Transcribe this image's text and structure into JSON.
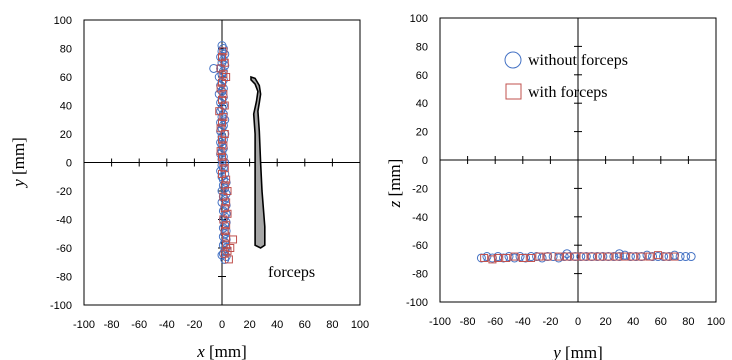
{
  "chart_data": [
    {
      "type": "scatter",
      "xlabel_var": "x",
      "xlabel_unit": " [mm]",
      "ylabel_var": "y",
      "ylabel_unit": " [mm]",
      "xlim": [
        -100,
        100
      ],
      "ylim": [
        -100,
        100
      ],
      "xticks": [
        -100,
        -80,
        -60,
        -40,
        -20,
        0,
        20,
        40,
        60,
        80,
        100
      ],
      "yticks": [
        -100,
        -80,
        -60,
        -40,
        -20,
        0,
        20,
        40,
        60,
        80,
        100
      ],
      "annotation": "forceps",
      "forceps_outline": [
        [
          21,
          60
        ],
        [
          24,
          59
        ],
        [
          27,
          54
        ],
        [
          28,
          48
        ],
        [
          27,
          42
        ],
        [
          26,
          36
        ],
        [
          27,
          22
        ],
        [
          28,
          0
        ],
        [
          29,
          -20
        ],
        [
          31,
          -45
        ],
        [
          31,
          -58
        ],
        [
          28,
          -60
        ],
        [
          24,
          -58
        ],
        [
          24,
          -40
        ],
        [
          24,
          -20
        ],
        [
          24,
          0
        ],
        [
          24,
          20
        ],
        [
          23,
          34
        ],
        [
          25,
          43
        ],
        [
          26,
          50
        ],
        [
          24,
          55
        ],
        [
          21,
          58
        ]
      ],
      "series": [
        {
          "name": "without forceps",
          "marker": "circle",
          "color": "#4472c4",
          "points": [
            [
              0,
              82
            ],
            [
              1,
              80
            ],
            [
              0,
              78
            ],
            [
              2,
              76
            ],
            [
              -1,
              74
            ],
            [
              1,
              72
            ],
            [
              0,
              70
            ],
            [
              2,
              68
            ],
            [
              -1,
              66
            ],
            [
              1,
              64
            ],
            [
              0,
              62
            ],
            [
              -2,
              60
            ],
            [
              1,
              58
            ],
            [
              0,
              56
            ],
            [
              -1,
              54
            ],
            [
              1,
              52
            ],
            [
              0,
              50
            ],
            [
              -2,
              48
            ],
            [
              1,
              46
            ],
            [
              0,
              44
            ],
            [
              -1,
              42
            ],
            [
              1,
              40
            ],
            [
              0,
              38
            ],
            [
              -1,
              36
            ],
            [
              1,
              34
            ],
            [
              0,
              32
            ],
            [
              2,
              30
            ],
            [
              -1,
              28
            ],
            [
              1,
              26
            ],
            [
              0,
              24
            ],
            [
              -1,
              22
            ],
            [
              2,
              20
            ],
            [
              0,
              18
            ],
            [
              1,
              16
            ],
            [
              -1,
              14
            ],
            [
              0,
              12
            ],
            [
              1,
              10
            ],
            [
              0,
              8
            ],
            [
              -1,
              6
            ],
            [
              1,
              4
            ],
            [
              0,
              2
            ],
            [
              2,
              0
            ],
            [
              0,
              -2
            ],
            [
              1,
              -4
            ],
            [
              -1,
              -6
            ],
            [
              2,
              -8
            ],
            [
              0,
              -10
            ],
            [
              1,
              -12
            ],
            [
              3,
              -14
            ],
            [
              1,
              -16
            ],
            [
              2,
              -18
            ],
            [
              0,
              -20
            ],
            [
              3,
              -22
            ],
            [
              1,
              -24
            ],
            [
              2,
              -26
            ],
            [
              0,
              -28
            ],
            [
              3,
              -30
            ],
            [
              2,
              -32
            ],
            [
              1,
              -34
            ],
            [
              3,
              -36
            ],
            [
              2,
              -38
            ],
            [
              1,
              -40
            ],
            [
              3,
              -42
            ],
            [
              2,
              -44
            ],
            [
              1,
              -46
            ],
            [
              3,
              -48
            ],
            [
              2,
              -50
            ],
            [
              1,
              -52
            ],
            [
              3,
              -54
            ],
            [
              2,
              -56
            ],
            [
              1,
              -58
            ],
            [
              3,
              -60
            ],
            [
              2,
              -62
            ],
            [
              1,
              -64
            ],
            [
              3,
              -66
            ],
            [
              2,
              -68
            ],
            [
              -6,
              66
            ],
            [
              0,
              -65
            ]
          ]
        },
        {
          "name": "with forceps",
          "marker": "square",
          "color": "#c0504d",
          "points": [
            [
              1,
              78
            ],
            [
              0,
              74
            ],
            [
              2,
              70
            ],
            [
              -1,
              66
            ],
            [
              1,
              62
            ],
            [
              3,
              60
            ],
            [
              0,
              56
            ],
            [
              -1,
              52
            ],
            [
              1,
              48
            ],
            [
              0,
              44
            ],
            [
              2,
              40
            ],
            [
              -2,
              36
            ],
            [
              1,
              32
            ],
            [
              0,
              28
            ],
            [
              -1,
              24
            ],
            [
              2,
              20
            ],
            [
              0,
              16
            ],
            [
              1,
              12
            ],
            [
              -1,
              8
            ],
            [
              0,
              4
            ],
            [
              1,
              0
            ],
            [
              2,
              -4
            ],
            [
              0,
              -8
            ],
            [
              3,
              -12
            ],
            [
              2,
              -16
            ],
            [
              4,
              -20
            ],
            [
              1,
              -24
            ],
            [
              3,
              -28
            ],
            [
              2,
              -32
            ],
            [
              4,
              -36
            ],
            [
              1,
              -40
            ],
            [
              3,
              -44
            ],
            [
              2,
              -48
            ],
            [
              8,
              -54
            ],
            [
              3,
              -58
            ],
            [
              4,
              -62
            ],
            [
              2,
              -64
            ],
            [
              5,
              -68
            ],
            [
              3,
              -52
            ],
            [
              6,
              -60
            ]
          ]
        }
      ]
    },
    {
      "type": "scatter",
      "xlabel_var": "y",
      "xlabel_unit": " [mm]",
      "ylabel_var": "z",
      "ylabel_unit": " [mm]",
      "xlim": [
        -100,
        100
      ],
      "ylim": [
        -100,
        100
      ],
      "xticks": [
        -100,
        -80,
        -60,
        -40,
        -20,
        0,
        20,
        40,
        60,
        80,
        100
      ],
      "yticks": [
        -100,
        -80,
        -60,
        -40,
        -20,
        0,
        20,
        40,
        60,
        80,
        100
      ],
      "legend": [
        "without forceps",
        "with forceps"
      ],
      "legend_position": "top-center",
      "series": [
        {
          "name": "without forceps",
          "marker": "circle",
          "color": "#4472c4",
          "points": [
            [
              -70,
              -69
            ],
            [
              -66,
              -68
            ],
            [
              -62,
              -69
            ],
            [
              -58,
              -68
            ],
            [
              -54,
              -69
            ],
            [
              -50,
              -68
            ],
            [
              -46,
              -69
            ],
            [
              -42,
              -68
            ],
            [
              -38,
              -69
            ],
            [
              -34,
              -68
            ],
            [
              -30,
              -68
            ],
            [
              -26,
              -69
            ],
            [
              -22,
              -68
            ],
            [
              -18,
              -68
            ],
            [
              -14,
              -69
            ],
            [
              -10,
              -68
            ],
            [
              -6,
              -68
            ],
            [
              -2,
              -68
            ],
            [
              2,
              -68
            ],
            [
              6,
              -68
            ],
            [
              10,
              -68
            ],
            [
              14,
              -68
            ],
            [
              18,
              -68
            ],
            [
              22,
              -68
            ],
            [
              26,
              -68
            ],
            [
              30,
              -68
            ],
            [
              34,
              -67
            ],
            [
              38,
              -68
            ],
            [
              42,
              -68
            ],
            [
              46,
              -68
            ],
            [
              50,
              -67
            ],
            [
              54,
              -68
            ],
            [
              58,
              -68
            ],
            [
              62,
              -68
            ],
            [
              66,
              -68
            ],
            [
              70,
              -67
            ],
            [
              74,
              -68
            ],
            [
              78,
              -68
            ],
            [
              82,
              -68
            ],
            [
              -8,
              -66
            ],
            [
              30,
              -66
            ]
          ]
        },
        {
          "name": "with forceps",
          "marker": "square",
          "color": "#c0504d",
          "points": [
            [
              -68,
              -69
            ],
            [
              -62,
              -70
            ],
            [
              -58,
              -69
            ],
            [
              -52,
              -69
            ],
            [
              -46,
              -68
            ],
            [
              -40,
              -69
            ],
            [
              -34,
              -69
            ],
            [
              -28,
              -68
            ],
            [
              -22,
              -68
            ],
            [
              -14,
              -68
            ],
            [
              -8,
              -68
            ],
            [
              -2,
              -68
            ],
            [
              4,
              -68
            ],
            [
              10,
              -68
            ],
            [
              16,
              -68
            ],
            [
              22,
              -68
            ],
            [
              28,
              -68
            ],
            [
              34,
              -68
            ],
            [
              40,
              -68
            ],
            [
              46,
              -68
            ],
            [
              52,
              -68
            ],
            [
              58,
              -67
            ],
            [
              64,
              -68
            ],
            [
              70,
              -68
            ]
          ]
        }
      ]
    }
  ]
}
